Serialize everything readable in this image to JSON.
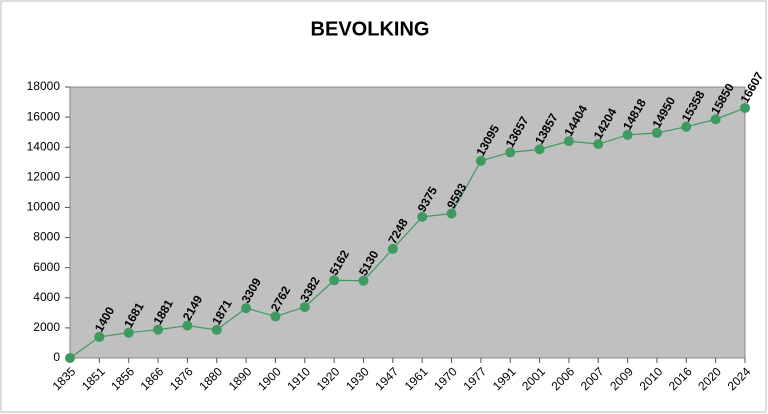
{
  "chart_data": {
    "type": "line",
    "title": "BEVOLKING",
    "categories": [
      "1835",
      "1851",
      "1856",
      "1866",
      "1876",
      "1880",
      "1890",
      "1900",
      "1910",
      "1920",
      "1930",
      "1947",
      "1961",
      "1970",
      "1977",
      "1991",
      "2001",
      "2006",
      "2007",
      "2009",
      "2010",
      "2016",
      "2020",
      "2024"
    ],
    "series": [
      {
        "name": "Bevolking",
        "color": "#3f9a5f",
        "values": [
          0,
          1400,
          1681,
          1881,
          2149,
          1871,
          3309,
          2762,
          3382,
          5162,
          5130,
          7248,
          9375,
          9593,
          13095,
          13657,
          13857,
          14404,
          14204,
          14818,
          14950,
          15358,
          15850,
          16607
        ],
        "value_labels": [
          null,
          "1400",
          "1681",
          "1881",
          "2149",
          "1871",
          "3309",
          "2762",
          "3382",
          "5162",
          "5130",
          "7248",
          "9375",
          "9593",
          "13095",
          "13657",
          "13857",
          "14404",
          "14204",
          "14818",
          "14950",
          "15358",
          "15850",
          "16607"
        ]
      }
    ],
    "ylim": [
      0,
      18000
    ],
    "yticks": [
      0,
      2000,
      4000,
      6000,
      8000,
      10000,
      12000,
      14000,
      16000,
      18000
    ],
    "grid": false
  }
}
